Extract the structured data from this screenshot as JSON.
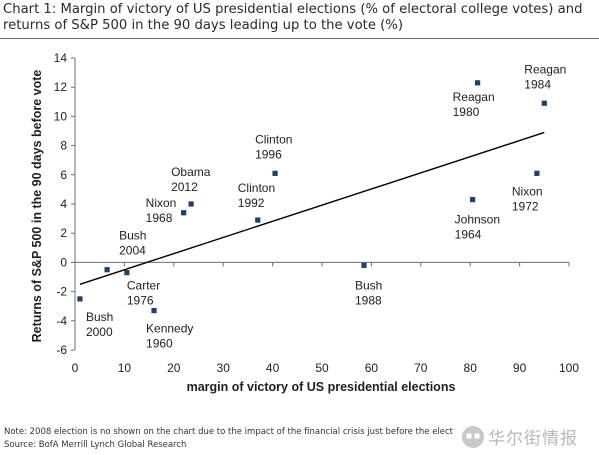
{
  "title": "Chart 1: Margin of victory of US presidential elections (% of electoral college votes) and returns of S&P 500 in the 90 days leading up to the vote (%)",
  "footnotes": [
    "Note: 2008 election is no shown on the chart due to the impact of the financial crisis just before the elect",
    "Source: BofA Merrill Lynch Global Research"
  ],
  "watermark": "华尔街情报",
  "chart_data": {
    "type": "scatter",
    "xlabel": "margin of victory of US presidential elections",
    "ylabel": "Returns of S&P 500 in the 90 days before vote",
    "xlim": [
      0,
      100
    ],
    "ylim": [
      -6,
      14
    ],
    "xticks": [
      0,
      10,
      20,
      30,
      40,
      50,
      60,
      70,
      80,
      90,
      100
    ],
    "yticks": [
      -6,
      -4,
      -2,
      0,
      2,
      4,
      6,
      8,
      10,
      12,
      14
    ],
    "grid": false,
    "marker_color": "#1f3f6e",
    "line_color": "#000000",
    "points": [
      {
        "label": [
          "Bush",
          "2000"
        ],
        "x": 1,
        "y": -2.5
      },
      {
        "label": [
          "Bush",
          "2004"
        ],
        "x": 6.5,
        "y": -0.5
      },
      {
        "label": [
          "Carter",
          "1976"
        ],
        "x": 10.5,
        "y": -0.7
      },
      {
        "label": [
          "Kennedy",
          "1960"
        ],
        "x": 16,
        "y": -3.3
      },
      {
        "label": [
          "Nixon",
          "1968"
        ],
        "x": 22,
        "y": 3.4
      },
      {
        "label": [
          "Obama",
          "2012"
        ],
        "x": 23.5,
        "y": 4.0
      },
      {
        "label": [
          "Clinton",
          "1992"
        ],
        "x": 37,
        "y": 2.9
      },
      {
        "label": [
          "Clinton",
          "1996"
        ],
        "x": 40.5,
        "y": 6.1
      },
      {
        "label": [
          "Bush",
          "1988"
        ],
        "x": 58.5,
        "y": -0.2
      },
      {
        "label": [
          "Johnson",
          "1964"
        ],
        "x": 80.5,
        "y": 4.3
      },
      {
        "label": [
          "Reagan",
          "1980"
        ],
        "x": 81.5,
        "y": 12.3
      },
      {
        "label": [
          "Nixon",
          "1972"
        ],
        "x": 93.5,
        "y": 6.1
      },
      {
        "label": [
          "Reagan",
          "1984"
        ],
        "x": 95,
        "y": 10.9
      }
    ],
    "trendline": {
      "x": [
        1,
        95
      ],
      "y": [
        -1.5,
        8.9
      ]
    }
  }
}
